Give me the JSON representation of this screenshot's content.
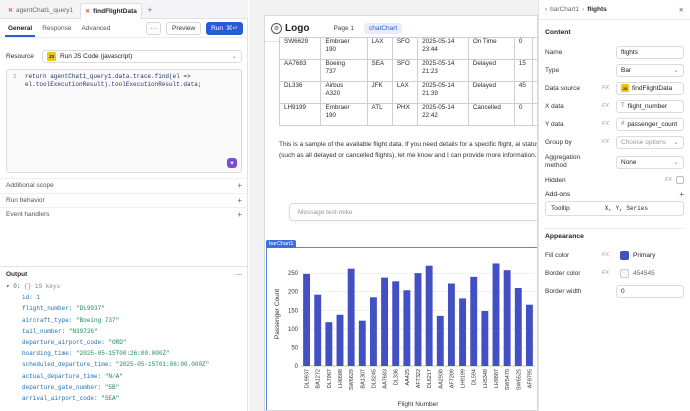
{
  "left": {
    "tabs": [
      {
        "label": "agentChat1_query1"
      },
      {
        "label": "findFlightData"
      }
    ],
    "subtabs": [
      "General",
      "Response",
      "Advanced"
    ],
    "preview_label": "Preview",
    "run_label": "Run",
    "run_shortcut": "⌘↵",
    "resource_label": "Resource",
    "resource_value": "Run JS Code (javascript)",
    "code_line_no": "1",
    "code_line1": "return agentChat1_query1.data.trace.find(el =>",
    "code_line2": "el.toolExecutionResult).toolExecutionResult.data;",
    "sections": [
      "Additional scope",
      "Run behavior",
      "Event handlers"
    ],
    "output_label": "Output",
    "output_root_key": "0:",
    "output_root_summary": "{} 19 keys",
    "output": [
      {
        "k": "id:",
        "v": "1"
      },
      {
        "k": "flight_number:",
        "v": "\"DL9937\""
      },
      {
        "k": "aircraft_type:",
        "v": "\"Boeing 737\""
      },
      {
        "k": "tail_number:",
        "v": "\"N39726\""
      },
      {
        "k": "departure_airport_code:",
        "v": "\"ORD\""
      },
      {
        "k": "boarding_time:",
        "v": "\"2025-05-15T00:26:00.000Z\""
      },
      {
        "k": "scheduled_departure_time:",
        "v": "\"2025-05-15T01:06:00.000Z\""
      },
      {
        "k": "actual_departure_time:",
        "v": "\"N/A\""
      },
      {
        "k": "departure_gate_number:",
        "v": "\"5B\""
      },
      {
        "k": "arrival_airport_code:",
        "v": "\"SEA\""
      }
    ]
  },
  "canvas": {
    "logo": "Logo",
    "nav": [
      "Page 1",
      "chatChart"
    ],
    "table_rows": [
      [
        "SW6629",
        "Embraer\n190",
        "LAX",
        "SFO",
        "2025-05-14\n23:44",
        "On Time",
        "0",
        "N"
      ],
      [
        "AA7683",
        "Boeing\n737",
        "SEA",
        "SFO",
        "2025-05-14\n21:23",
        "Delayed",
        "15",
        "A"
      ],
      [
        "DL336",
        "Airbus\nA320",
        "JFK",
        "LAX",
        "2025-05-14\n21:39",
        "Delayed",
        "45",
        "C"
      ],
      [
        "LH9199",
        "Embraer\n190",
        "ATL",
        "PHX",
        "2025-05-14\n22:42",
        "Cancelled",
        "0",
        "C\nA"
      ]
    ],
    "message": "This is a sample of the available flight data. If you need details for a specific flight, ai status (such as all delayed or cancelled flights), let me know and I can provide more information.",
    "input_placeholder": "Message test-mike",
    "chart_tag": "barChart1"
  },
  "chart_data": {
    "type": "bar",
    "categories": [
      "DL9937",
      "BA1272",
      "DL7967",
      "LH6688",
      "SW6629",
      "BA1307",
      "DL8245",
      "AA7683",
      "DL336",
      "AA425",
      "AF7322",
      "DL6217",
      "AA2930",
      "AF7209",
      "LH9199",
      "DL594",
      "LH5349",
      "LH9887",
      "SW5470",
      "SW6525",
      "AF8795"
    ],
    "values": [
      248,
      192,
      118,
      138,
      262,
      122,
      185,
      238,
      228,
      204,
      250,
      270,
      135,
      222,
      182,
      240,
      148,
      276,
      258,
      210,
      165
    ],
    "xlabel": "Flight Number",
    "ylabel": "Passenger Count",
    "yticks": [
      0,
      50,
      100,
      150,
      200,
      250
    ],
    "ylim": [
      0,
      280
    ],
    "color": "#4350c4"
  },
  "right": {
    "breadcrumb_parent": "barChart1",
    "breadcrumb_sep": "›",
    "title": "flights",
    "content_label": "Content",
    "props": [
      {
        "label": "Name",
        "value": "flights",
        "fx": ""
      },
      {
        "label": "Type",
        "value": "Bar",
        "fx": ""
      },
      {
        "label": "Data source",
        "value": "findFlightData",
        "fx": "FX"
      },
      {
        "label": "X data",
        "value": "flight_number",
        "fx": "FX"
      },
      {
        "label": "Y data",
        "value": "passenger_count",
        "fx": "FX"
      },
      {
        "label": "Group by",
        "value": "Choose options",
        "fx": "FX"
      }
    ],
    "agg_label1": "Aggregation",
    "agg_label2": "method",
    "agg_value": "None",
    "hidden_label": "Hidden",
    "hidden_fx": "FX",
    "addons_label": "Add-ons",
    "tooltip_label": "Tooltip",
    "tooltip_value": "X, Y, Series",
    "appearance_label": "Appearance",
    "fill_label": "Fill color",
    "fill_value": "Primary",
    "fill_hex": "#4350c4",
    "border_label": "Border color",
    "border_value": "454545",
    "width_label": "Border width",
    "width_value": "0"
  }
}
